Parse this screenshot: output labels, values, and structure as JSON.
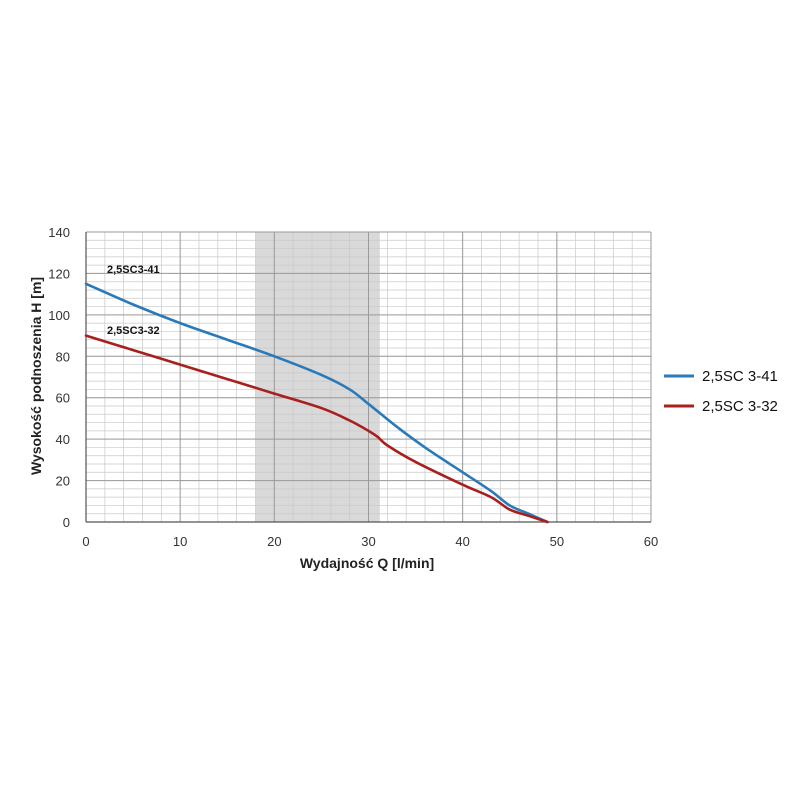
{
  "chart_data": {
    "type": "line",
    "xlabel": "Wydajność Q [l/min]",
    "ylabel": "Wysokość podnoszenia H [m]",
    "xlim": [
      0,
      60
    ],
    "ylim": [
      0,
      140
    ],
    "x_ticks": [
      0,
      10,
      20,
      30,
      40,
      50,
      60
    ],
    "y_ticks": [
      0,
      20,
      40,
      60,
      80,
      100,
      120,
      140
    ],
    "x_minor_step": 2,
    "y_minor_step": 4,
    "grid": true,
    "highlight_range_x": [
      18,
      31.2
    ],
    "legend_position": "right",
    "series": [
      {
        "name": "2,5SC 3-41",
        "label": "2,5SC3-41",
        "color": "#2a7ab9",
        "x": [
          0,
          5,
          10,
          15,
          20,
          25,
          28,
          30,
          33,
          36,
          40,
          43,
          45,
          47,
          49
        ],
        "y": [
          115,
          105,
          96,
          88,
          80,
          71,
          64,
          57,
          46,
          36,
          24,
          15,
          8,
          4,
          0
        ]
      },
      {
        "name": "2,5SC 3-32",
        "label": "2,5SC3-32",
        "color": "#a8201e",
        "x": [
          0,
          5,
          10,
          15,
          20,
          25,
          28,
          30,
          31,
          32,
          35,
          40,
          43,
          45,
          47,
          49
        ],
        "y": [
          90,
          83,
          76,
          69,
          62,
          55,
          49,
          44,
          41,
          37,
          29,
          18,
          12,
          6,
          3,
          0
        ]
      }
    ]
  }
}
